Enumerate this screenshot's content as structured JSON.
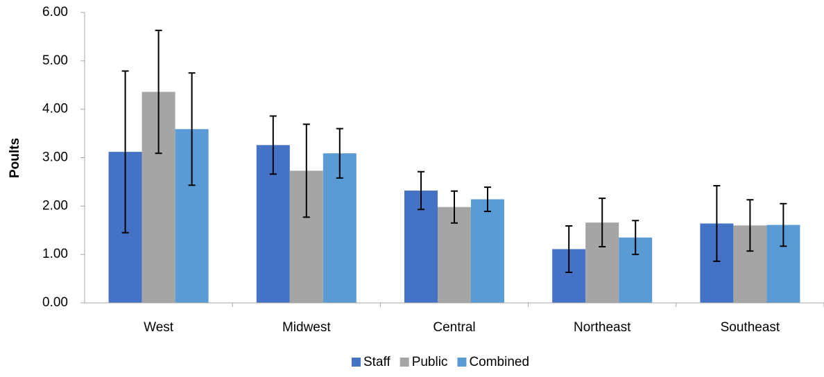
{
  "chart_data": {
    "type": "bar",
    "y_label": "Poults",
    "categories": [
      "West",
      "Midwest",
      "Central",
      "Northeast",
      "Southeast"
    ],
    "series": [
      {
        "name": "Staff",
        "color": "#4472c4",
        "values": [
          3.12,
          3.26,
          2.32,
          1.11,
          1.64
        ],
        "errors": [
          1.67,
          0.6,
          0.39,
          0.48,
          0.78
        ]
      },
      {
        "name": "Public",
        "color": "#a5a5a5",
        "values": [
          4.36,
          2.73,
          1.98,
          1.66,
          1.6
        ],
        "errors": [
          1.27,
          0.96,
          0.33,
          0.5,
          0.53
        ]
      },
      {
        "name": "Combined",
        "color": "#5b9bd5",
        "values": [
          3.59,
          3.09,
          2.14,
          1.35,
          1.61
        ],
        "errors": [
          1.16,
          0.51,
          0.25,
          0.35,
          0.44
        ]
      }
    ],
    "ylim": [
      0,
      6
    ],
    "yticks": [
      {
        "value": 0,
        "label": "0.00"
      },
      {
        "value": 1,
        "label": "1.00"
      },
      {
        "value": 2,
        "label": "2.00"
      },
      {
        "value": 3,
        "label": "3.00"
      },
      {
        "value": 4,
        "label": "4.00"
      },
      {
        "value": 5,
        "label": "5.00"
      },
      {
        "value": 6,
        "label": "6.00"
      }
    ],
    "grid": false,
    "legend": "bottom"
  }
}
